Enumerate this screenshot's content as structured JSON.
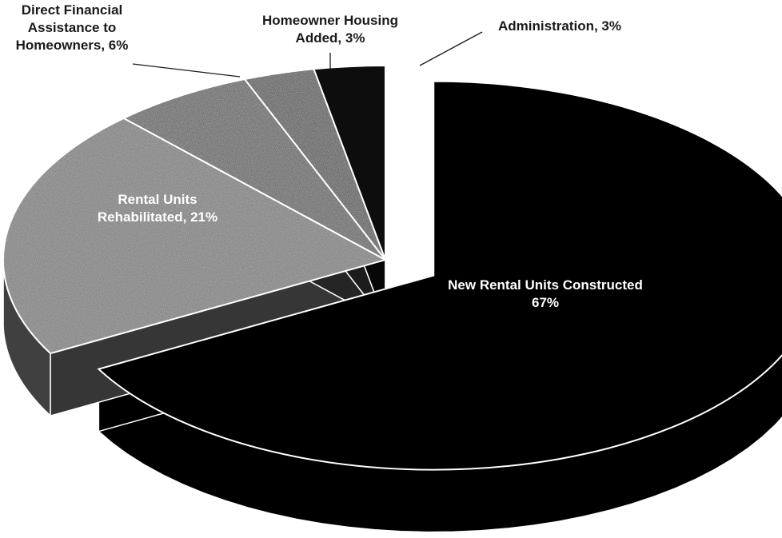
{
  "chart_data": {
    "type": "pie",
    "style": "3d-exploded",
    "title": "",
    "slices": [
      {
        "label_lines": [
          "New Rental Units Constructed",
          "67%"
        ],
        "category": "New Rental Units Constructed",
        "value": 67,
        "color": "#000000",
        "exploded": true
      },
      {
        "label_lines": [
          "Rental Units",
          "Rehabilitated, 21%"
        ],
        "category": "Rental Units Rehabilitated",
        "value": 21,
        "color": "#6b6b6b",
        "exploded": false
      },
      {
        "label_lines": [
          "Direct Financial",
          "Assistance to",
          "Homeowners, 6%"
        ],
        "category": "Direct Financial Assistance to Homeowners",
        "value": 6,
        "color": "#4a4a4a",
        "exploded": false
      },
      {
        "label_lines": [
          "Homeowner Housing",
          "Added, 3%"
        ],
        "category": "Homeowner Housing Added",
        "value": 3,
        "color": "#383838",
        "exploded": false
      },
      {
        "label_lines": [
          "Administration, 3%"
        ],
        "category": "Administration",
        "value": 3,
        "color": "#0d0d0d",
        "exploded": false
      }
    ]
  }
}
